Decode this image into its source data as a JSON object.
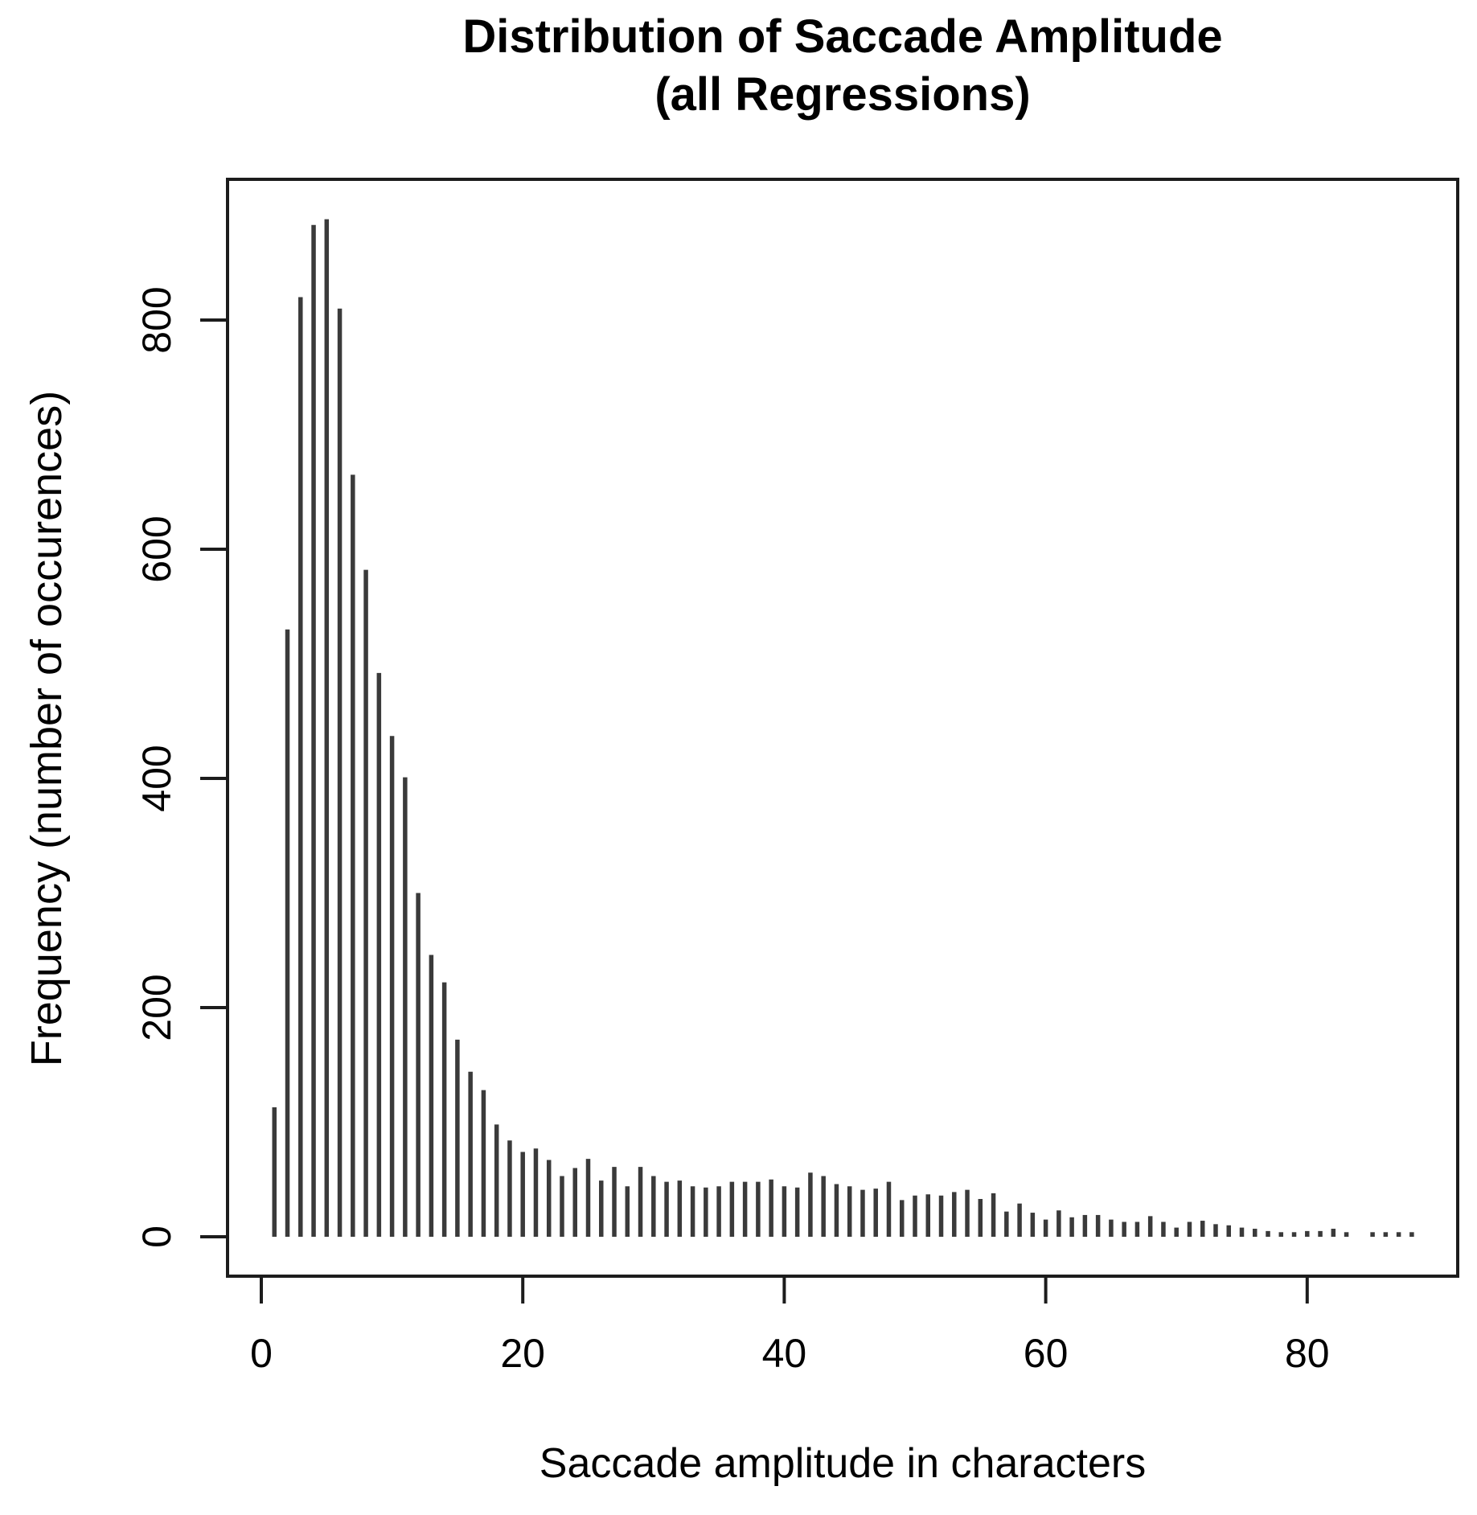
{
  "page": {
    "background": "#ffffff",
    "text_color": "#000000"
  },
  "chart_data": {
    "type": "bar",
    "title_line1": "Distribution of Saccade Amplitude",
    "title_line2": "(all Regressions)",
    "xlabel": "Saccade amplitude in characters",
    "ylabel": "Frequency (number of occurences)",
    "x_ticks": [
      0,
      20,
      40,
      60,
      80
    ],
    "y_ticks": [
      0,
      200,
      400,
      600,
      800
    ],
    "xlim": [
      0,
      91
    ],
    "ylim": [
      0,
      920
    ],
    "grid": false,
    "legend": "none",
    "bar_color": "#3a3a3a",
    "axis_color": "#1c1c1c",
    "x": [
      1,
      2,
      3,
      4,
      5,
      6,
      7,
      8,
      9,
      10,
      11,
      12,
      13,
      14,
      15,
      16,
      17,
      18,
      19,
      20,
      21,
      22,
      23,
      24,
      25,
      26,
      27,
      28,
      29,
      30,
      31,
      32,
      33,
      34,
      35,
      36,
      37,
      38,
      39,
      40,
      41,
      42,
      43,
      44,
      45,
      46,
      47,
      48,
      49,
      50,
      51,
      52,
      53,
      54,
      55,
      56,
      57,
      58,
      59,
      60,
      61,
      62,
      63,
      64,
      65,
      66,
      67,
      68,
      69,
      70,
      71,
      72,
      73,
      74,
      75,
      76,
      77,
      78,
      79,
      80,
      81,
      82,
      83,
      84,
      85,
      86,
      87,
      88
    ],
    "values": [
      113,
      530,
      820,
      883,
      888,
      810,
      665,
      582,
      492,
      437,
      401,
      300,
      246,
      222,
      172,
      144,
      128,
      98,
      84,
      74,
      77,
      67,
      53,
      60,
      68,
      49,
      61,
      44,
      61,
      53,
      48,
      49,
      44,
      43,
      44,
      48,
      48,
      48,
      50,
      44,
      43,
      56,
      53,
      46,
      44,
      41,
      42,
      48,
      32,
      36,
      37,
      36,
      39,
      41,
      33,
      38,
      22,
      29,
      21,
      15,
      23,
      17,
      19,
      19,
      15,
      13,
      13,
      18,
      13,
      8,
      13,
      14,
      11,
      10,
      8,
      7,
      5,
      4,
      4,
      5,
      5,
      7,
      4,
      0,
      4,
      4,
      4,
      4
    ]
  }
}
